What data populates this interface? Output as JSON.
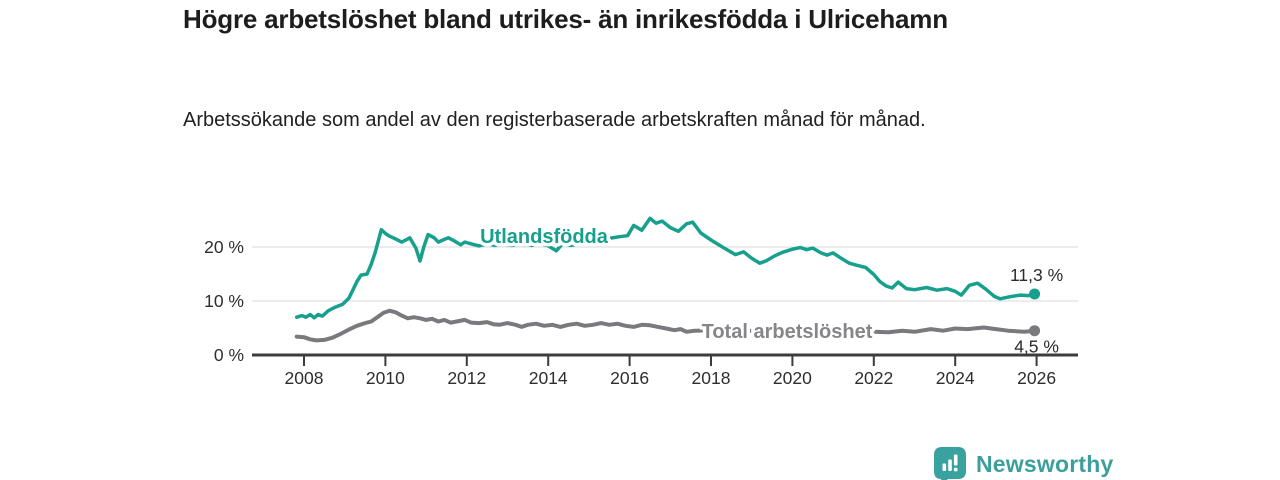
{
  "title": "Högre arbetslöshet bland utrikes- än inrikesfödda i Ulricehamn",
  "subtitle": "Arbetssökande som andel av den registerbaserade arbetskraften månad för månad.",
  "footer": {
    "brand": "Newsworthy",
    "logo_icon": "newsworthy-chart-bubble-icon",
    "brand_color": "#3d9f9b",
    "logo_color": "#3aa29e"
  },
  "colors": {
    "background": "#ffffff",
    "title_text": "#1d1d1d",
    "axis": "#3c3c3c",
    "gridline": "#d9d9d9",
    "tick_text": "#2e2e2e",
    "end_label_text": "#2b2b2b"
  },
  "chart_data": {
    "type": "line",
    "unit": "%",
    "grid": "horizontal",
    "legend_position": "inline-labels",
    "xlim": [
      2006.7,
      2026.95
    ],
    "ylim": [
      0,
      27
    ],
    "x_ticks": [
      {
        "value": 2008,
        "label": "2008"
      },
      {
        "value": 2010,
        "label": "2010"
      },
      {
        "value": 2012,
        "label": "2012"
      },
      {
        "value": 2014,
        "label": "2014"
      },
      {
        "value": 2016,
        "label": "2016"
      },
      {
        "value": 2018,
        "label": "2018"
      },
      {
        "value": 2020,
        "label": "2020"
      },
      {
        "value": 2022,
        "label": "2022"
      },
      {
        "value": 2024,
        "label": "2024"
      },
      {
        "value": 2026,
        "label": "2026"
      }
    ],
    "y_ticks": [
      {
        "value": 0,
        "label": "0 %"
      },
      {
        "value": 10,
        "label": "10 %"
      },
      {
        "value": 20,
        "label": "20 %"
      }
    ],
    "series": [
      {
        "name": "Utlandsfödda",
        "color": "#17a08d",
        "label_color": "#17a08d",
        "end_label": "11,3 %",
        "end_value": 11.3,
        "points": [
          [
            2007.82,
            7.0
          ],
          [
            2007.95,
            7.3
          ],
          [
            2008.05,
            7.0
          ],
          [
            2008.15,
            7.5
          ],
          [
            2008.25,
            6.9
          ],
          [
            2008.35,
            7.5
          ],
          [
            2008.45,
            7.2
          ],
          [
            2008.6,
            8.2
          ],
          [
            2008.75,
            8.8
          ],
          [
            2008.95,
            9.4
          ],
          [
            2009.1,
            10.5
          ],
          [
            2009.2,
            12.0
          ],
          [
            2009.3,
            13.6
          ],
          [
            2009.4,
            14.8
          ],
          [
            2009.55,
            15.0
          ],
          [
            2009.65,
            16.8
          ],
          [
            2009.75,
            19.0
          ],
          [
            2009.9,
            23.2
          ],
          [
            2010.0,
            22.5
          ],
          [
            2010.1,
            22.0
          ],
          [
            2010.25,
            21.5
          ],
          [
            2010.4,
            20.9
          ],
          [
            2010.5,
            21.3
          ],
          [
            2010.6,
            21.7
          ],
          [
            2010.75,
            19.8
          ],
          [
            2010.85,
            17.4
          ],
          [
            2010.95,
            20.2
          ],
          [
            2011.05,
            22.3
          ],
          [
            2011.2,
            21.7
          ],
          [
            2011.3,
            20.9
          ],
          [
            2011.45,
            21.4
          ],
          [
            2011.55,
            21.7
          ],
          [
            2011.7,
            21.1
          ],
          [
            2011.85,
            20.4
          ],
          [
            2011.95,
            20.9
          ],
          [
            2012.1,
            20.6
          ],
          [
            2012.3,
            20.2
          ],
          [
            2012.5,
            20.6
          ],
          [
            2012.7,
            20.3
          ],
          [
            2012.9,
            20.6
          ],
          [
            2013.1,
            20.3
          ],
          [
            2013.35,
            20.5
          ],
          [
            2013.6,
            20.3
          ],
          [
            2013.8,
            20.7
          ],
          [
            2014.0,
            20.2
          ],
          [
            2014.2,
            19.3
          ],
          [
            2014.35,
            20.6
          ],
          [
            2014.55,
            20.3
          ],
          [
            2014.8,
            20.7
          ],
          [
            2015.0,
            21.0
          ],
          [
            2015.25,
            21.3
          ],
          [
            2015.5,
            21.6
          ],
          [
            2015.75,
            21.9
          ],
          [
            2015.95,
            22.1
          ],
          [
            2016.1,
            24.0
          ],
          [
            2016.3,
            23.1
          ],
          [
            2016.5,
            25.3
          ],
          [
            2016.65,
            24.4
          ],
          [
            2016.8,
            24.8
          ],
          [
            2017.0,
            23.6
          ],
          [
            2017.2,
            22.9
          ],
          [
            2017.4,
            24.3
          ],
          [
            2017.55,
            24.6
          ],
          [
            2017.75,
            22.6
          ],
          [
            2018.0,
            21.3
          ],
          [
            2018.3,
            19.9
          ],
          [
            2018.6,
            18.6
          ],
          [
            2018.8,
            19.1
          ],
          [
            2019.0,
            17.9
          ],
          [
            2019.2,
            17.0
          ],
          [
            2019.35,
            17.4
          ],
          [
            2019.55,
            18.3
          ],
          [
            2019.75,
            19.0
          ],
          [
            2020.0,
            19.6
          ],
          [
            2020.2,
            19.9
          ],
          [
            2020.35,
            19.5
          ],
          [
            2020.5,
            19.8
          ],
          [
            2020.7,
            18.9
          ],
          [
            2020.85,
            18.5
          ],
          [
            2021.0,
            18.9
          ],
          [
            2021.2,
            17.9
          ],
          [
            2021.4,
            17.0
          ],
          [
            2021.6,
            16.6
          ],
          [
            2021.8,
            16.2
          ],
          [
            2022.0,
            14.9
          ],
          [
            2022.15,
            13.6
          ],
          [
            2022.3,
            12.8
          ],
          [
            2022.45,
            12.4
          ],
          [
            2022.6,
            13.5
          ],
          [
            2022.8,
            12.3
          ],
          [
            2023.0,
            12.1
          ],
          [
            2023.3,
            12.5
          ],
          [
            2023.55,
            12.0
          ],
          [
            2023.8,
            12.3
          ],
          [
            2024.0,
            11.8
          ],
          [
            2024.15,
            11.1
          ],
          [
            2024.35,
            12.9
          ],
          [
            2024.55,
            13.3
          ],
          [
            2024.75,
            12.2
          ],
          [
            2024.95,
            10.9
          ],
          [
            2025.1,
            10.4
          ],
          [
            2025.35,
            10.8
          ],
          [
            2025.6,
            11.1
          ],
          [
            2025.8,
            11.0
          ],
          [
            2025.95,
            11.3
          ]
        ]
      },
      {
        "name": "Total arbetslöshet",
        "color": "#7a7a7e",
        "label_color": "#85858a",
        "end_label": "4,5 %",
        "end_value": 4.5,
        "points": [
          [
            2007.82,
            3.4
          ],
          [
            2008.0,
            3.3
          ],
          [
            2008.15,
            2.9
          ],
          [
            2008.3,
            2.7
          ],
          [
            2008.5,
            2.8
          ],
          [
            2008.7,
            3.2
          ],
          [
            2008.9,
            3.9
          ],
          [
            2009.1,
            4.7
          ],
          [
            2009.3,
            5.4
          ],
          [
            2009.5,
            5.9
          ],
          [
            2009.65,
            6.2
          ],
          [
            2009.8,
            7.0
          ],
          [
            2009.95,
            7.8
          ],
          [
            2010.1,
            8.2
          ],
          [
            2010.25,
            7.9
          ],
          [
            2010.4,
            7.3
          ],
          [
            2010.55,
            6.8
          ],
          [
            2010.7,
            7.0
          ],
          [
            2010.85,
            6.8
          ],
          [
            2011.0,
            6.5
          ],
          [
            2011.15,
            6.7
          ],
          [
            2011.3,
            6.2
          ],
          [
            2011.45,
            6.5
          ],
          [
            2011.6,
            6.0
          ],
          [
            2011.75,
            6.2
          ],
          [
            2011.95,
            6.5
          ],
          [
            2012.1,
            6.0
          ],
          [
            2012.3,
            5.9
          ],
          [
            2012.5,
            6.1
          ],
          [
            2012.65,
            5.7
          ],
          [
            2012.8,
            5.6
          ],
          [
            2013.0,
            5.9
          ],
          [
            2013.2,
            5.6
          ],
          [
            2013.35,
            5.2
          ],
          [
            2013.5,
            5.6
          ],
          [
            2013.7,
            5.8
          ],
          [
            2013.9,
            5.4
          ],
          [
            2014.1,
            5.6
          ],
          [
            2014.3,
            5.2
          ],
          [
            2014.5,
            5.6
          ],
          [
            2014.7,
            5.8
          ],
          [
            2014.9,
            5.4
          ],
          [
            2015.1,
            5.6
          ],
          [
            2015.3,
            5.9
          ],
          [
            2015.5,
            5.6
          ],
          [
            2015.7,
            5.8
          ],
          [
            2015.9,
            5.4
          ],
          [
            2016.1,
            5.2
          ],
          [
            2016.3,
            5.6
          ],
          [
            2016.5,
            5.5
          ],
          [
            2016.7,
            5.2
          ],
          [
            2016.9,
            4.9
          ],
          [
            2017.1,
            4.6
          ],
          [
            2017.25,
            4.8
          ],
          [
            2017.4,
            4.3
          ],
          [
            2017.6,
            4.5
          ],
          [
            2018.0,
            4.6
          ],
          [
            2018.5,
            4.4
          ],
          [
            2019.0,
            4.5
          ],
          [
            2019.5,
            4.3
          ],
          [
            2020.0,
            4.6
          ],
          [
            2020.5,
            4.8
          ],
          [
            2021.0,
            4.6
          ],
          [
            2021.5,
            4.4
          ],
          [
            2022.0,
            4.3
          ],
          [
            2022.35,
            4.2
          ],
          [
            2022.7,
            4.5
          ],
          [
            2023.0,
            4.3
          ],
          [
            2023.4,
            4.8
          ],
          [
            2023.7,
            4.5
          ],
          [
            2024.0,
            4.9
          ],
          [
            2024.3,
            4.8
          ],
          [
            2024.7,
            5.1
          ],
          [
            2025.0,
            4.8
          ],
          [
            2025.3,
            4.5
          ],
          [
            2025.7,
            4.3
          ],
          [
            2025.95,
            4.5
          ]
        ]
      }
    ]
  }
}
